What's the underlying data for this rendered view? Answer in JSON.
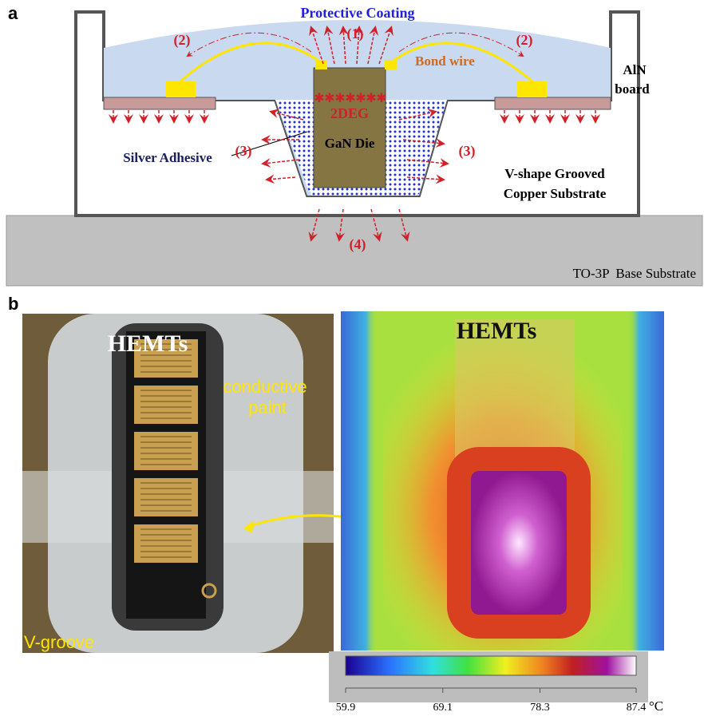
{
  "panel_a": {
    "label": "a",
    "protective_coating": "Protective Coating",
    "path_1": "(1)",
    "path_2_left": "(2)",
    "path_2_right": "(2)",
    "bond_wire": "Bond wire",
    "aln_board": [
      "AlN",
      "board"
    ],
    "two_deg": "2DEG",
    "gan_die": "GaN Die",
    "silver_adhesive": "Silver Adhesive",
    "path_3_left": "(3)",
    "path_3_right": "(3)",
    "copper_substrate": [
      "V-shape Grooved",
      "Copper Substrate"
    ],
    "path_4": "(4)",
    "base_substrate": "TO-3P  Base Substrate"
  },
  "panel_b": {
    "label": "b",
    "photo": {
      "hemts": "HEMTs",
      "conductive_paint": [
        "conductive",
        "paint"
      ],
      "v_groove": "V-groove"
    },
    "thermal": {
      "hemts": "HEMTs"
    },
    "colorbar": {
      "ticks": [
        59.9,
        69.1,
        78.3,
        87.4
      ],
      "unit": "°C"
    }
  }
}
